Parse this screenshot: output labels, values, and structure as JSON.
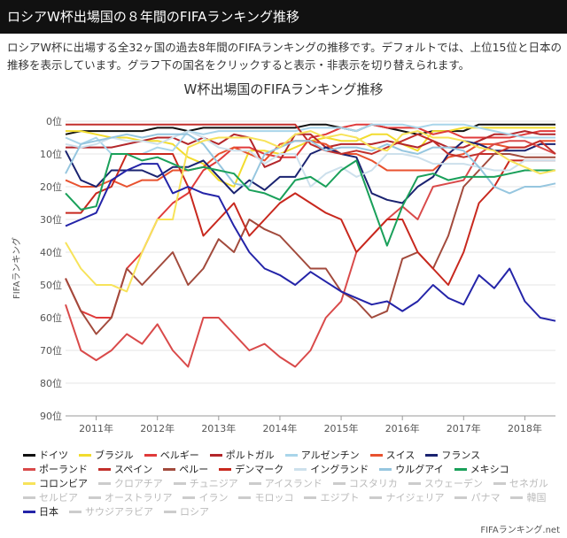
{
  "header": {
    "title": "ロシアW杯出場国の８年間のFIFAランキング推移"
  },
  "description": "ロシアW杯に出場する全32ヶ国の過去8年間のFIFAランキングの推移です。デフォルトでは、上位15位と日本の推移を表示しています。グラフ下の国名をクリックすると表示・非表示を切り替えられます。",
  "footer": "FIFAランキング.net",
  "chart_data": {
    "type": "line",
    "title": "W杯出場国のFIFAランキング推移",
    "ylabel": "FIFAランキング",
    "x": [
      2010.5,
      2010.75,
      2011,
      2011.25,
      2011.5,
      2011.75,
      2012,
      2012.25,
      2012.5,
      2012.75,
      2013,
      2013.25,
      2013.5,
      2013.75,
      2014,
      2014.25,
      2014.5,
      2014.75,
      2015,
      2015.25,
      2015.5,
      2015.75,
      2016,
      2016.25,
      2016.5,
      2016.75,
      2017,
      2017.25,
      2017.5,
      2017.75,
      2018,
      2018.25,
      2018.5
    ],
    "xlim": [
      2010.5,
      2018.5
    ],
    "xticks": [
      {
        "value": 2011,
        "label": "2011年"
      },
      {
        "value": 2012,
        "label": "2012年"
      },
      {
        "value": 2013,
        "label": "2013年"
      },
      {
        "value": 2014,
        "label": "2014年"
      },
      {
        "value": 2015,
        "label": "2015年"
      },
      {
        "value": 2016,
        "label": "2016年"
      },
      {
        "value": 2017,
        "label": "2017年"
      },
      {
        "value": 2018,
        "label": "2018年"
      }
    ],
    "ylim": [
      0,
      90
    ],
    "y_reversed": true,
    "yticks": [
      {
        "value": 0,
        "label": "0位"
      },
      {
        "value": 10,
        "label": "10位"
      },
      {
        "value": 20,
        "label": "20位"
      },
      {
        "value": 30,
        "label": "30位"
      },
      {
        "value": 40,
        "label": "40位"
      },
      {
        "value": 50,
        "label": "50位"
      },
      {
        "value": 60,
        "label": "60位"
      },
      {
        "value": 70,
        "label": "70位"
      },
      {
        "value": 80,
        "label": "80位"
      },
      {
        "value": 90,
        "label": "90位"
      }
    ],
    "grid": true,
    "series": [
      {
        "name": "ドイツ",
        "color": "#111111",
        "visible": true,
        "values": [
          4,
          3,
          3,
          3,
          3,
          3,
          2,
          2,
          3,
          2,
          2,
          2,
          2,
          2,
          2,
          2,
          1,
          1,
          2,
          3,
          1,
          2,
          3,
          4,
          3,
          3,
          3,
          1,
          1,
          1,
          1,
          1,
          1
        ]
      },
      {
        "name": "ブラジル",
        "color": "#f2dc2e",
        "visible": true,
        "values": [
          3,
          3,
          4,
          5,
          5,
          6,
          6,
          7,
          11,
          13,
          18,
          20,
          9,
          9,
          10,
          8,
          6,
          5,
          6,
          6,
          4,
          4,
          7,
          9,
          3,
          3,
          2,
          2,
          2,
          2,
          2,
          2,
          2
        ]
      },
      {
        "name": "ベルギー",
        "color": "#e03a3a",
        "visible": true,
        "values": [
          48,
          58,
          60,
          60,
          45,
          40,
          30,
          25,
          22,
          15,
          12,
          8,
          8,
          10,
          11,
          11,
          5,
          4,
          2,
          1,
          1,
          2,
          2,
          2,
          4,
          3,
          5,
          5,
          5,
          5,
          4,
          3,
          3
        ]
      },
      {
        "name": "ポルトガル",
        "color": "#b3262a",
        "visible": true,
        "values": [
          8,
          8,
          8,
          8,
          7,
          6,
          5,
          5,
          7,
          5,
          7,
          4,
          5,
          14,
          12,
          4,
          4,
          8,
          7,
          7,
          7,
          6,
          7,
          8,
          6,
          8,
          8,
          6,
          4,
          4,
          3,
          4,
          4
        ]
      },
      {
        "name": "アルゼンチン",
        "color": "#a9d5ea",
        "visible": true,
        "values": [
          5,
          7,
          5,
          10,
          10,
          10,
          8,
          9,
          3,
          4,
          3,
          3,
          3,
          3,
          3,
          3,
          2,
          2,
          2,
          3,
          1,
          1,
          1,
          2,
          1,
          1,
          1,
          2,
          3,
          4,
          5,
          5,
          5
        ]
      },
      {
        "name": "スイス",
        "color": "#e8522f",
        "visible": true,
        "values": [
          18,
          20,
          20,
          18,
          20,
          18,
          18,
          15,
          15,
          14,
          10,
          8,
          10,
          12,
          7,
          6,
          6,
          7,
          10,
          10,
          12,
          15,
          15,
          15,
          15,
          11,
          10,
          7,
          7,
          8,
          8,
          6,
          6
        ]
      },
      {
        "name": "フランス",
        "color": "#1a2370",
        "visible": true,
        "values": [
          9,
          18,
          20,
          15,
          15,
          15,
          17,
          14,
          14,
          12,
          17,
          22,
          18,
          21,
          17,
          17,
          10,
          8,
          10,
          11,
          22,
          24,
          25,
          20,
          17,
          10,
          6,
          7,
          9,
          9,
          9,
          7,
          7
        ]
      },
      {
        "name": "ポーランド",
        "color": "#d94a4a",
        "visible": true,
        "values": [
          56,
          70,
          73,
          70,
          65,
          68,
          62,
          70,
          75,
          60,
          60,
          65,
          70,
          68,
          72,
          75,
          70,
          60,
          55,
          40,
          35,
          30,
          26,
          30,
          20,
          19,
          18,
          10,
          7,
          6,
          6,
          8,
          10
        ]
      },
      {
        "name": "スペイン",
        "color": "#c22f2b",
        "visible": true,
        "values": [
          1,
          1,
          1,
          1,
          1,
          1,
          1,
          1,
          1,
          1,
          1,
          1,
          1,
          1,
          1,
          1,
          7,
          9,
          10,
          9,
          10,
          8,
          6,
          4,
          6,
          10,
          11,
          10,
          10,
          8,
          8,
          6,
          10
        ]
      },
      {
        "name": "ペルー",
        "color": "#a24a3c",
        "visible": true,
        "values": [
          48,
          58,
          65,
          60,
          45,
          50,
          45,
          40,
          50,
          45,
          36,
          40,
          30,
          33,
          35,
          40,
          45,
          45,
          52,
          55,
          60,
          58,
          42,
          40,
          45,
          35,
          20,
          15,
          10,
          10,
          11,
          11,
          11
        ]
      },
      {
        "name": "デンマーク",
        "color": "#c8281e",
        "visible": true,
        "values": [
          28,
          28,
          22,
          20,
          10,
          10,
          10,
          10,
          20,
          35,
          30,
          25,
          35,
          30,
          25,
          22,
          25,
          28,
          30,
          40,
          35,
          30,
          30,
          40,
          45,
          50,
          40,
          25,
          20,
          12,
          12,
          12,
          12
        ]
      },
      {
        "name": "イングランド",
        "color": "#cde0ec",
        "visible": true,
        "values": [
          7,
          8,
          7,
          5,
          6,
          6,
          7,
          5,
          3,
          5,
          8,
          9,
          9,
          13,
          10,
          10,
          20,
          16,
          14,
          17,
          15,
          10,
          10,
          11,
          13,
          13,
          13,
          14,
          15,
          15,
          12,
          12,
          12
        ]
      },
      {
        "name": "ウルグアイ",
        "color": "#96c6df",
        "visible": true,
        "values": [
          16,
          7,
          6,
          5,
          4,
          5,
          4,
          4,
          4,
          7,
          13,
          19,
          20,
          10,
          8,
          6,
          6,
          9,
          8,
          8,
          9,
          7,
          9,
          10,
          8,
          8,
          9,
          14,
          20,
          22,
          20,
          20,
          19
        ]
      },
      {
        "name": "メキシコ",
        "color": "#1aa05a",
        "visible": true,
        "values": [
          22,
          27,
          26,
          10,
          10,
          12,
          11,
          13,
          15,
          14,
          15,
          16,
          21,
          22,
          24,
          18,
          17,
          20,
          15,
          12,
          25,
          38,
          26,
          17,
          16,
          18,
          17,
          17,
          17,
          16,
          15,
          15,
          15
        ]
      },
      {
        "name": "コロンビア",
        "color": "#f7e35a",
        "visible": true,
        "values": [
          37,
          45,
          50,
          50,
          52,
          40,
          30,
          30,
          8,
          6,
          5,
          5,
          5,
          6,
          8,
          4,
          3,
          5,
          4,
          5,
          8,
          9,
          4,
          3,
          5,
          5,
          6,
          8,
          9,
          12,
          14,
          16,
          15
        ]
      },
      {
        "name": "クロアチア",
        "color": "#cccccc",
        "visible": false
      },
      {
        "name": "チュニジア",
        "color": "#cccccc",
        "visible": false
      },
      {
        "name": "アイスランド",
        "color": "#cccccc",
        "visible": false
      },
      {
        "name": "コスタリカ",
        "color": "#cccccc",
        "visible": false
      },
      {
        "name": "スウェーデン",
        "color": "#cccccc",
        "visible": false
      },
      {
        "name": "セネガル",
        "color": "#cccccc",
        "visible": false
      },
      {
        "name": "セルビア",
        "color": "#cccccc",
        "visible": false
      },
      {
        "name": "オーストラリア",
        "color": "#cccccc",
        "visible": false
      },
      {
        "name": "イラン",
        "color": "#cccccc",
        "visible": false
      },
      {
        "name": "モロッコ",
        "color": "#cccccc",
        "visible": false
      },
      {
        "name": "エジプト",
        "color": "#cccccc",
        "visible": false
      },
      {
        "name": "ナイジェリア",
        "color": "#cccccc",
        "visible": false
      },
      {
        "name": "パナマ",
        "color": "#cccccc",
        "visible": false
      },
      {
        "name": "韓国",
        "color": "#cccccc",
        "visible": false
      },
      {
        "name": "日本",
        "color": "#2424a8",
        "visible": true,
        "values": [
          32,
          30,
          28,
          18,
          15,
          13,
          13,
          22,
          20,
          22,
          23,
          32,
          40,
          45,
          47,
          50,
          46,
          49,
          52,
          54,
          56,
          55,
          58,
          55,
          50,
          54,
          56,
          47,
          51,
          45,
          55,
          60,
          61
        ]
      },
      {
        "name": "サウジアラビア",
        "color": "#cccccc",
        "visible": false
      },
      {
        "name": "ロシア",
        "color": "#cccccc",
        "visible": false
      }
    ]
  }
}
